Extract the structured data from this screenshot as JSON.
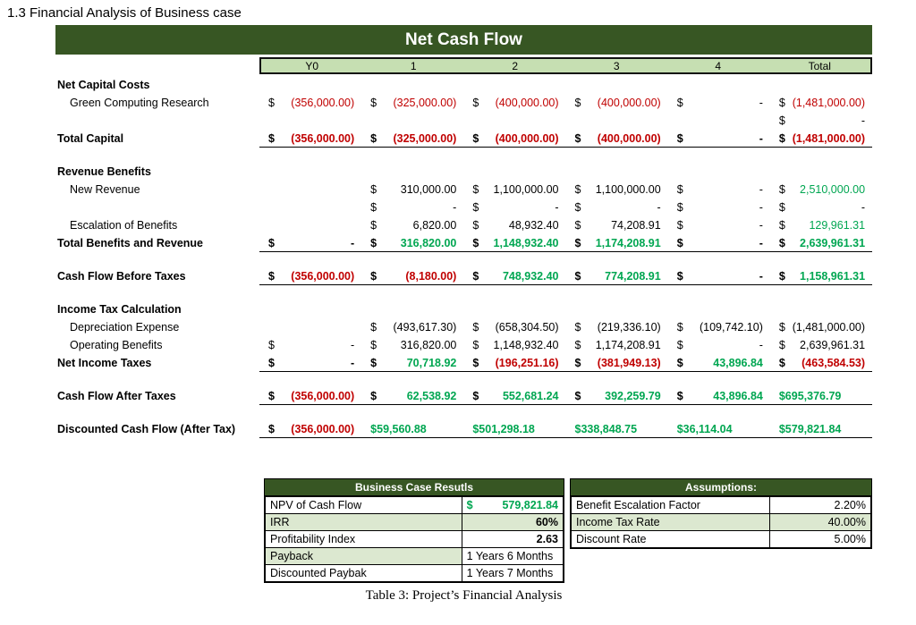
{
  "page": {
    "heading": "1.3 Financial Analysis of Business case",
    "caption": "Table 3: Project’s Financial Analysis"
  },
  "colors": {
    "dark_green": "#375623",
    "header_green": "#C6DFB2",
    "band_green": "#DCE8D0",
    "negative_red": "#C00000",
    "positive_green": "#00A651"
  },
  "cashflow": {
    "title": "Net Cash Flow",
    "col_headers": [
      "Y0",
      "1",
      "2",
      "3",
      "4",
      "Total"
    ],
    "rows": [
      {
        "label": "Net Capital Costs",
        "type": "section"
      },
      {
        "label": "Green Computing Research",
        "type": "item",
        "cells": [
          {
            "s": "$",
            "v": "(356,000.00)",
            "c": "neg"
          },
          {
            "s": "$",
            "v": "(325,000.00)",
            "c": "neg"
          },
          {
            "s": "$",
            "v": "(400,000.00)",
            "c": "neg"
          },
          {
            "s": "$",
            "v": "(400,000.00)",
            "c": "neg"
          },
          {
            "s": "$",
            "v": "-"
          },
          {
            "s": "$",
            "v": "(1,481,000.00)",
            "c": "neg"
          }
        ]
      },
      {
        "label": "",
        "type": "item",
        "cells": [
          null,
          null,
          null,
          null,
          null,
          {
            "s": "$",
            "v": "-"
          }
        ]
      },
      {
        "label": "Total Capital",
        "type": "total",
        "rule": true,
        "cells": [
          {
            "s": "$",
            "v": "(356,000.00)",
            "c": "neg"
          },
          {
            "s": "$",
            "v": "(325,000.00)",
            "c": "neg"
          },
          {
            "s": "$",
            "v": "(400,000.00)",
            "c": "neg"
          },
          {
            "s": "$",
            "v": "(400,000.00)",
            "c": "neg"
          },
          {
            "s": "$",
            "v": "-"
          },
          {
            "s": "$",
            "v": "(1,481,000.00)",
            "c": "neg"
          }
        ]
      },
      {
        "type": "spacer"
      },
      {
        "label": "Revenue Benefits",
        "type": "section"
      },
      {
        "label": "New Revenue",
        "type": "item",
        "cells": [
          null,
          {
            "s": "$",
            "v": "310,000.00"
          },
          {
            "s": "$",
            "v": "1,100,000.00"
          },
          {
            "s": "$",
            "v": "1,100,000.00"
          },
          {
            "s": "$",
            "v": "-"
          },
          {
            "s": "$",
            "v": "2,510,000.00",
            "c": "pos"
          }
        ]
      },
      {
        "label": "",
        "type": "item",
        "cells": [
          null,
          {
            "s": "$",
            "v": "-"
          },
          {
            "s": "$",
            "v": "-"
          },
          {
            "s": "$",
            "v": "-"
          },
          {
            "s": "$",
            "v": "-"
          },
          {
            "s": "$",
            "v": "-"
          }
        ]
      },
      {
        "label": "Escalation of Benefits",
        "type": "item",
        "cells": [
          null,
          {
            "s": "$",
            "v": "6,820.00"
          },
          {
            "s": "$",
            "v": "48,932.40"
          },
          {
            "s": "$",
            "v": "74,208.91"
          },
          {
            "s": "$",
            "v": "-"
          },
          {
            "s": "$",
            "v": "129,961.31",
            "c": "pos"
          }
        ]
      },
      {
        "label": "Total Benefits and Revenue",
        "type": "total",
        "rule": true,
        "cells": [
          {
            "s": "$",
            "v": "-"
          },
          {
            "s": "$",
            "v": "316,820.00",
            "c": "pos"
          },
          {
            "s": "$",
            "v": "1,148,932.40",
            "c": "pos"
          },
          {
            "s": "$",
            "v": "1,174,208.91",
            "c": "pos"
          },
          {
            "s": "$",
            "v": "-"
          },
          {
            "s": "$",
            "v": "2,639,961.31",
            "c": "pos"
          }
        ]
      },
      {
        "type": "spacer"
      },
      {
        "label": "Cash Flow Before Taxes",
        "type": "total",
        "rule": true,
        "cells": [
          {
            "s": "$",
            "v": "(356,000.00)",
            "c": "neg"
          },
          {
            "s": "$",
            "v": "(8,180.00)",
            "c": "neg"
          },
          {
            "s": "$",
            "v": "748,932.40",
            "c": "pos"
          },
          {
            "s": "$",
            "v": "774,208.91",
            "c": "pos"
          },
          {
            "s": "$",
            "v": "-"
          },
          {
            "s": "$",
            "v": "1,158,961.31",
            "c": "pos"
          }
        ]
      },
      {
        "type": "spacer"
      },
      {
        "label": "Income Tax Calculation",
        "type": "section"
      },
      {
        "label": "Depreciation Expense",
        "type": "item",
        "cells": [
          null,
          {
            "s": "$",
            "v": "(493,617.30)"
          },
          {
            "s": "$",
            "v": "(658,304.50)"
          },
          {
            "s": "$",
            "v": "(219,336.10)"
          },
          {
            "s": "$",
            "v": "(109,742.10)"
          },
          {
            "s": "$",
            "v": "(1,481,000.00)"
          }
        ]
      },
      {
        "label": "Operating Benefits",
        "type": "item",
        "cells": [
          {
            "s": "$",
            "v": "-"
          },
          {
            "s": "$",
            "v": "316,820.00"
          },
          {
            "s": "$",
            "v": "1,148,932.40"
          },
          {
            "s": "$",
            "v": "1,174,208.91"
          },
          {
            "s": "$",
            "v": "-"
          },
          {
            "s": "$",
            "v": "2,639,961.31"
          }
        ]
      },
      {
        "label": "Net Income Taxes",
        "type": "total",
        "rule": true,
        "cells": [
          {
            "s": "$",
            "v": "-"
          },
          {
            "s": "$",
            "v": "70,718.92",
            "c": "pos"
          },
          {
            "s": "$",
            "v": "(196,251.16)",
            "c": "neg"
          },
          {
            "s": "$",
            "v": "(381,949.13)",
            "c": "neg"
          },
          {
            "s": "$",
            "v": "43,896.84",
            "c": "pos"
          },
          {
            "s": "$",
            "v": "(463,584.53)",
            "c": "neg"
          }
        ]
      },
      {
        "type": "spacer"
      },
      {
        "label": "Cash Flow After Taxes",
        "type": "total",
        "rule": true,
        "cells": [
          {
            "s": "$",
            "v": "(356,000.00)",
            "c": "neg"
          },
          {
            "s": "$",
            "v": "62,538.92",
            "c": "pos"
          },
          {
            "s": "$",
            "v": "552,681.24",
            "c": "pos"
          },
          {
            "s": "$",
            "v": "392,259.79",
            "c": "pos"
          },
          {
            "s": "$",
            "v": "43,896.84",
            "c": "pos"
          },
          {
            "s": "",
            "v": "$695,376.79",
            "c": "pos",
            "a": "l"
          }
        ]
      },
      {
        "type": "spacer"
      },
      {
        "label": "Discounted Cash Flow (After Tax)",
        "type": "total",
        "rule": true,
        "cells": [
          {
            "s": "$",
            "v": "(356,000.00)",
            "c": "neg"
          },
          {
            "s": "",
            "v": "$59,560.88",
            "c": "pos",
            "a": "l"
          },
          {
            "s": "",
            "v": "$501,298.18",
            "c": "pos",
            "a": "l"
          },
          {
            "s": "",
            "v": "$338,848.75",
            "c": "pos",
            "a": "l"
          },
          {
            "s": "",
            "v": "$36,114.04",
            "c": "pos",
            "a": "l"
          },
          {
            "s": "",
            "v": "$579,821.84",
            "c": "pos",
            "a": "l"
          }
        ]
      }
    ]
  },
  "results": {
    "title": "Business Case Resutls",
    "rows": [
      {
        "label": "NPV of Cash Flow",
        "prefix": "$",
        "value": "579,821.84",
        "style": "green-money",
        "label_shade": false,
        "value_shade": false
      },
      {
        "label": "IRR",
        "value": "60%",
        "style": "bold",
        "label_shade": true,
        "value_shade": true
      },
      {
        "label": "Profitability Index",
        "value": "2.63",
        "style": "bold",
        "label_shade": false,
        "value_shade": false
      },
      {
        "label": "Payback",
        "value": "1 Years 6 Months",
        "style": "left",
        "label_shade": true,
        "value_shade": false
      },
      {
        "label": "Discounted Paybak",
        "value": "1 Years 7 Months",
        "style": "left",
        "label_shade": false,
        "value_shade": false
      }
    ]
  },
  "assumptions": {
    "title": "Assumptions:",
    "rows": [
      {
        "label": "Benefit Escalation Factor",
        "value": "2.20%",
        "label_shade": false,
        "value_shade": false
      },
      {
        "label": "Income Tax Rate",
        "value": "40.00%",
        "label_shade": true,
        "value_shade": true
      },
      {
        "label": "Discount Rate",
        "value": "5.00%",
        "label_shade": false,
        "value_shade": false
      }
    ]
  }
}
